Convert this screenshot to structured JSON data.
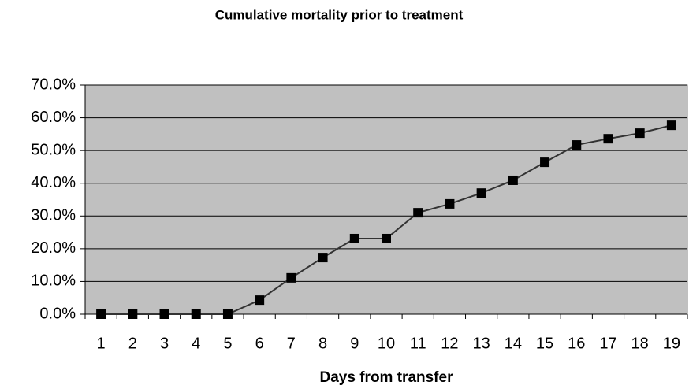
{
  "chart_data": {
    "type": "line",
    "title": "Cumulative mortality prior to treatment",
    "x_label": "Days from transfer",
    "categories": [
      "1",
      "2",
      "3",
      "4",
      "5",
      "6",
      "7",
      "8",
      "9",
      "10",
      "11",
      "12",
      "13",
      "14",
      "15",
      "16",
      "17",
      "18",
      "19"
    ],
    "series": [
      {
        "name": "Cumulative mortality",
        "color": "#333333",
        "marker_color": "#000000",
        "values": [
          0,
          0,
          0,
          0,
          0,
          4.3,
          11.1,
          17.3,
          23.1,
          23.1,
          31.0,
          33.7,
          37.0,
          40.9,
          46.4,
          51.7,
          53.6,
          55.3,
          57.7
        ]
      }
    ],
    "ylim": [
      0,
      70
    ],
    "yticks": [
      {
        "value": 0,
        "label": "0.0%"
      },
      {
        "value": 10,
        "label": "10.0%"
      },
      {
        "value": 20,
        "label": "20.0%"
      },
      {
        "value": 30,
        "label": "30.0%"
      },
      {
        "value": 40,
        "label": "40.0%"
      },
      {
        "value": 50,
        "label": "50.0%"
      },
      {
        "value": 60,
        "label": "60.0%"
      },
      {
        "value": 70,
        "label": "70.0%"
      }
    ],
    "grid": true,
    "plot_background": "#c0c0c0"
  }
}
